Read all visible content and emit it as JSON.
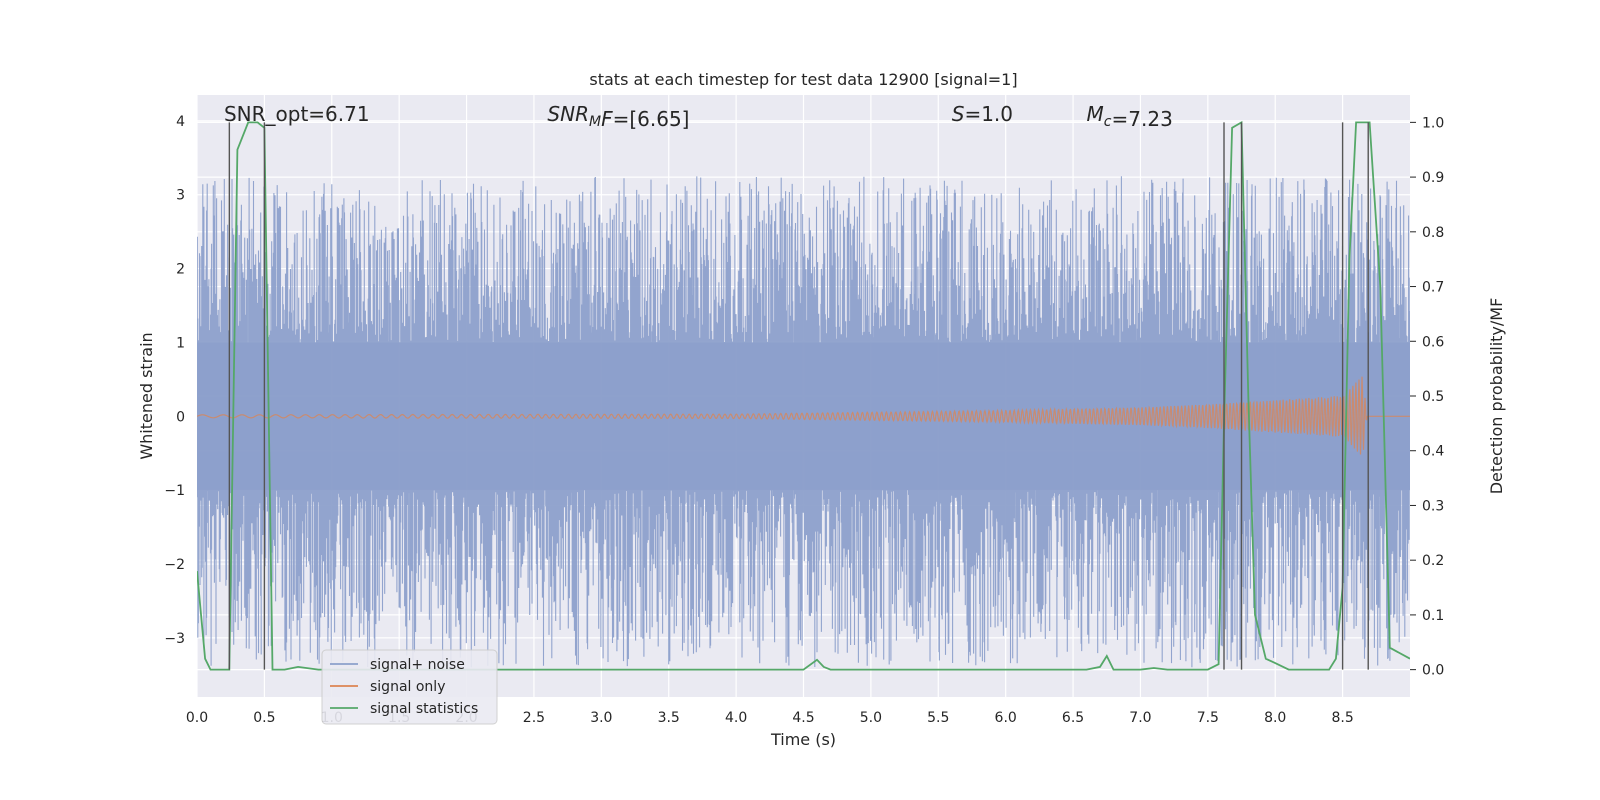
{
  "chart_data": {
    "type": "line",
    "title": "stats at each timestep for test data 12900 [signal=1]",
    "xlabel": "Time (s)",
    "ylabel": "Whitened strain",
    "ylabel_right": "Detection probability/MF",
    "xlim": [
      0.0,
      9.0
    ],
    "ylim": [
      -3.8,
      4.35
    ],
    "ylim_right": [
      -0.05,
      1.05
    ],
    "xticks": [
      0.0,
      0.5,
      1.0,
      1.5,
      2.0,
      2.5,
      3.0,
      3.5,
      4.0,
      4.5,
      5.0,
      5.5,
      6.0,
      6.5,
      7.0,
      7.5,
      8.0,
      8.5
    ],
    "yticks": [
      -3,
      -2,
      -1,
      0,
      1,
      2,
      3,
      4
    ],
    "yticks_right": [
      0.0,
      0.1,
      0.2,
      0.3,
      0.4,
      0.5,
      0.6,
      0.7,
      0.8,
      0.9,
      1.0
    ],
    "grid": true,
    "legend_position": "lower-left",
    "annotations": [
      {
        "text": "SNR_opt=6.71",
        "x": 0.2
      },
      {
        "text": "SNR_M F=[6.65]",
        "x": 2.6
      },
      {
        "text": "S=1.0",
        "x": 5.6
      },
      {
        "text": "M_c=7.23",
        "x": 6.6
      }
    ],
    "series": [
      {
        "name": "signal+ noise",
        "color": "#8da0cb",
        "axis": "left",
        "kind": "noise",
        "band_half_width": 1.0,
        "spike_max": 3.25,
        "spike_min": -3.4
      },
      {
        "name": "signal only",
        "color": "#dd8452",
        "axis": "left",
        "kind": "chirp",
        "envelope": [
          [
            0.0,
            0.02
          ],
          [
            4.0,
            0.03
          ],
          [
            6.0,
            0.08
          ],
          [
            7.0,
            0.12
          ],
          [
            7.5,
            0.16
          ],
          [
            8.0,
            0.22
          ],
          [
            8.5,
            0.28
          ],
          [
            8.65,
            0.55
          ],
          [
            8.68,
            0.0
          ]
        ]
      },
      {
        "name": "signal statistics",
        "color": "#55a868",
        "axis": "right",
        "kind": "line",
        "x": [
          0.0,
          0.06,
          0.1,
          0.15,
          0.24,
          0.3,
          0.38,
          0.45,
          0.5,
          0.56,
          0.65,
          0.75,
          0.9,
          1.5,
          2.5,
          3.5,
          4.5,
          4.6,
          4.65,
          4.7,
          5.0,
          6.0,
          6.6,
          6.7,
          6.75,
          6.8,
          7.0,
          7.1,
          7.2,
          7.5,
          7.58,
          7.62,
          7.68,
          7.75,
          7.8,
          7.85,
          7.93,
          8.0,
          8.1,
          8.2,
          8.4,
          8.45,
          8.5,
          8.55,
          8.6,
          8.7,
          8.78,
          8.85,
          9.0
        ],
        "y": [
          0.18,
          0.02,
          0.0,
          0.0,
          0.0,
          0.95,
          1.0,
          1.0,
          0.99,
          0.0,
          0.0,
          0.005,
          0.0,
          0.0,
          0.0,
          0.0,
          0.0,
          0.018,
          0.005,
          0.0,
          0.0,
          0.0,
          0.0,
          0.005,
          0.025,
          0.0,
          0.0,
          0.003,
          0.0,
          0.0,
          0.01,
          0.45,
          0.99,
          1.0,
          0.5,
          0.1,
          0.02,
          0.012,
          0.0,
          0.0,
          0.0,
          0.02,
          0.15,
          0.75,
          1.0,
          1.0,
          0.7,
          0.04,
          0.02
        ]
      }
    ],
    "vertical_lines": [
      0.24,
      0.5,
      7.62,
      7.75,
      8.5,
      8.69
    ]
  }
}
